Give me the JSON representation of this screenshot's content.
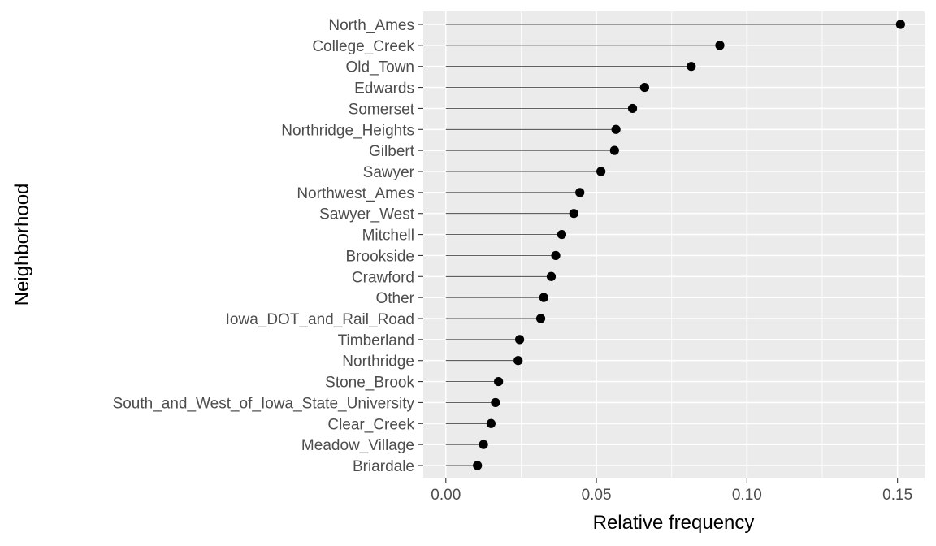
{
  "chart_data": {
    "type": "lollipop",
    "orientation": "horizontal",
    "xlabel": "Relative frequency",
    "ylabel": "Neighborhood",
    "xlim": [
      -0.0075,
      0.159
    ],
    "xticks": [
      0.0,
      0.05,
      0.1,
      0.15
    ],
    "xtick_labels": [
      "0.00",
      "0.05",
      "0.10",
      "0.15"
    ],
    "grid": true,
    "background": "#ebebeb",
    "point_color": "#000000",
    "categories": [
      "North_Ames",
      "College_Creek",
      "Old_Town",
      "Edwards",
      "Somerset",
      "Northridge_Heights",
      "Gilbert",
      "Sawyer",
      "Northwest_Ames",
      "Sawyer_West",
      "Mitchell",
      "Brookside",
      "Crawford",
      "Other",
      "Iowa_DOT_and_Rail_Road",
      "Timberland",
      "Northridge",
      "Stone_Brook",
      "South_and_West_of_Iowa_State_University",
      "Clear_Creek",
      "Meadow_Village",
      "Briardale"
    ],
    "values": [
      0.151,
      0.091,
      0.0815,
      0.066,
      0.062,
      0.0565,
      0.056,
      0.0515,
      0.0445,
      0.0425,
      0.0385,
      0.0365,
      0.035,
      0.0325,
      0.0315,
      0.0245,
      0.024,
      0.0175,
      0.0165,
      0.015,
      0.0125,
      0.0105
    ]
  }
}
